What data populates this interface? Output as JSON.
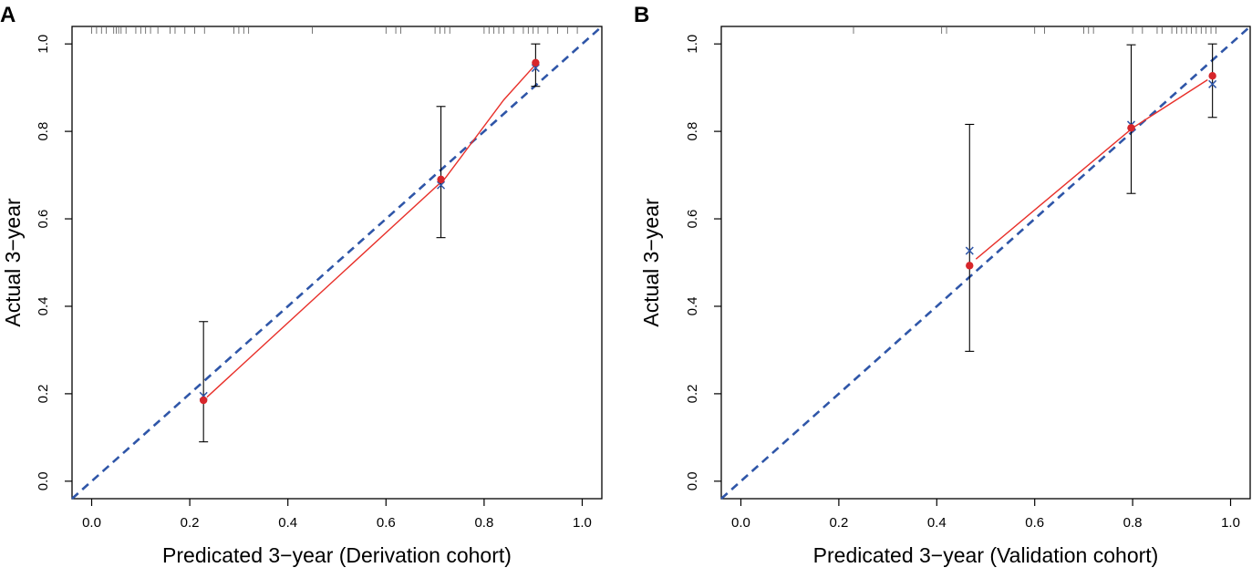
{
  "colors": {
    "calibrated": "#e8302a",
    "point": "#d7262b",
    "ideal": "#2f56a8",
    "bias_corrected": "#2f56a8",
    "error_bar": "#000000",
    "axis": "#000000"
  },
  "chart_data": [
    {
      "type": "scatter",
      "panel_label": "A",
      "xlabel": "Predicated 3−year (Derivation cohort)",
      "ylabel": "Actual 3−year",
      "xlim": [
        -0.04,
        1.04
      ],
      "ylim": [
        -0.04,
        1.04
      ],
      "xticks": [
        "0.0",
        "0.2",
        "0.4",
        "0.6",
        "0.8",
        "1.0"
      ],
      "yticks": [
        "0.0",
        "0.2",
        "0.4",
        "0.6",
        "0.8",
        "1.0"
      ],
      "ideal_line": [
        [
          -0.04,
          -0.04
        ],
        [
          1.04,
          1.04
        ]
      ],
      "calibration_points": [
        {
          "x": 0.228,
          "y": 0.185,
          "bias_corrected": 0.195,
          "ci_low": 0.09,
          "ci_high": 0.365
        },
        {
          "x": 0.712,
          "y": 0.69,
          "bias_corrected": 0.677,
          "ci_low": 0.557,
          "ci_high": 0.857
        },
        {
          "x": 0.905,
          "y": 0.957,
          "bias_corrected": 0.945,
          "ci_low": 0.903,
          "ci_high": 1.0
        }
      ],
      "calibrated_curve": [
        [
          0.235,
          0.192
        ],
        [
          0.72,
          0.692
        ],
        [
          0.84,
          0.872
        ],
        [
          0.905,
          0.953
        ]
      ],
      "rug": [
        0.0,
        0.01,
        0.02,
        0.03,
        0.045,
        0.05,
        0.055,
        0.06,
        0.07,
        0.09,
        0.1,
        0.11,
        0.12,
        0.135,
        0.16,
        0.17,
        0.19,
        0.21,
        0.23,
        0.29,
        0.3,
        0.31,
        0.32,
        0.45,
        0.6,
        0.62,
        0.63,
        0.7,
        0.71,
        0.72,
        0.73,
        0.8,
        0.81,
        0.82,
        0.83,
        0.84,
        0.86,
        0.88,
        0.89,
        0.9,
        0.91,
        0.93,
        0.95,
        0.97,
        0.99
      ]
    },
    {
      "type": "scatter",
      "panel_label": "B",
      "xlabel": "Predicated 3−year (Validation cohort)",
      "ylabel": "Actual 3−year",
      "xlim": [
        -0.04,
        1.04
      ],
      "ylim": [
        -0.04,
        1.04
      ],
      "xticks": [
        "0.0",
        "0.2",
        "0.4",
        "0.6",
        "0.8",
        "1.0"
      ],
      "yticks": [
        "0.0",
        "0.2",
        "0.4",
        "0.6",
        "0.8",
        "1.0"
      ],
      "ideal_line": [
        [
          -0.04,
          -0.04
        ],
        [
          1.04,
          1.04
        ]
      ],
      "calibration_points": [
        {
          "x": 0.467,
          "y": 0.493,
          "bias_corrected": 0.527,
          "ci_low": 0.297,
          "ci_high": 0.816
        },
        {
          "x": 0.797,
          "y": 0.808,
          "bias_corrected": 0.815,
          "ci_low": 0.658,
          "ci_high": 0.998
        },
        {
          "x": 0.963,
          "y": 0.927,
          "bias_corrected": 0.908,
          "ci_low": 0.832,
          "ci_high": 1.0
        }
      ],
      "calibrated_curve": [
        [
          0.48,
          0.508
        ],
        [
          0.8,
          0.808
        ],
        [
          0.953,
          0.918
        ]
      ],
      "rug": [
        0.23,
        0.41,
        0.42,
        0.6,
        0.62,
        0.7,
        0.71,
        0.72,
        0.8,
        0.82,
        0.85,
        0.86,
        0.88,
        0.89,
        0.9,
        0.91,
        0.92,
        0.93,
        0.94,
        0.95,
        0.96,
        0.97
      ]
    }
  ]
}
